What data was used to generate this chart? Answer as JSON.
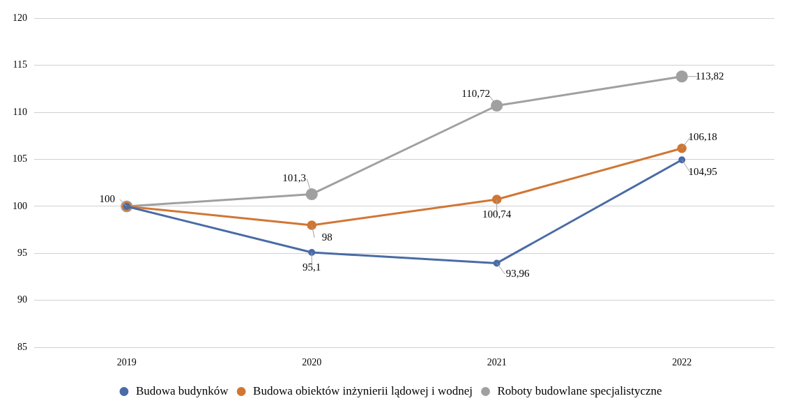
{
  "chart_data": {
    "type": "line",
    "categories": [
      "2019",
      "2020",
      "2021",
      "2022"
    ],
    "series": [
      {
        "name": "Budowa budynków",
        "color": "#4a6ba6",
        "values": [
          100,
          95.1,
          93.96,
          104.95
        ],
        "value_labels": [
          null,
          "95,1",
          "93,96",
          "104,95"
        ]
      },
      {
        "name": "Budowa obiektów inżynierii lądowej i wodnej",
        "color": "#d17634",
        "values": [
          100,
          98,
          100.74,
          106.18
        ],
        "value_labels": [
          null,
          "98",
          "100,74",
          "106,18"
        ]
      },
      {
        "name": "Roboty budowlane specjalistyczne",
        "color": "#a0a0a0",
        "values": [
          100,
          101.3,
          110.72,
          113.82
        ],
        "value_labels": [
          "100",
          "101,3",
          "110,72",
          "113,82"
        ]
      }
    ],
    "ylim": [
      85,
      120
    ],
    "yticks": [
      85,
      90,
      95,
      100,
      105,
      110,
      115,
      120
    ],
    "grid": "y",
    "legend": "bottom",
    "marker": "circle",
    "line_style": "solid"
  }
}
